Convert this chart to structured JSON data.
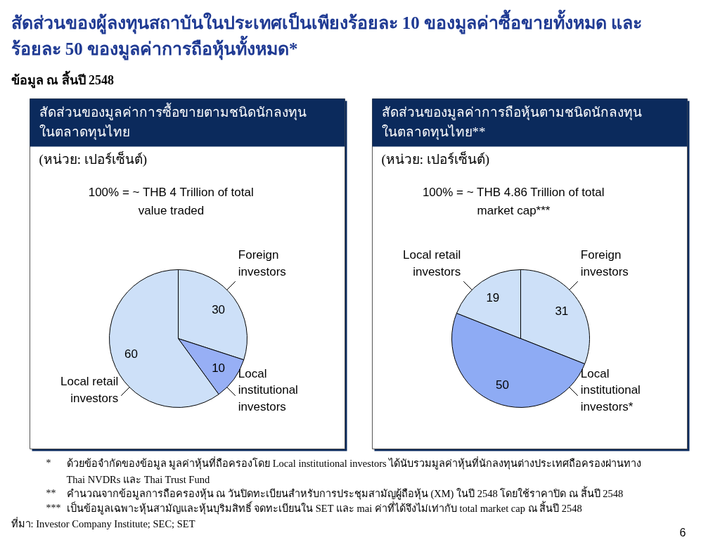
{
  "chart_data": [
    {
      "type": "other",
      "title": "สัดส่วนของผู้ลงทุนสถาบันในประเทศเป็นเพียงร้อยละ 10 ของมูลค่าซื้อขายทั้งหมด และ\nร้อยละ 50 ของมูลค่าการถือหุ้นทั้งหมด*",
      "subtitle": "ข้อมูล ณ สิ้นปี 2548",
      "annotations": [
        "* ด้วยข้อจำกัดของข้อมูล มูลค่าหุ้นที่ถือครองโดย Local institutional investors ได้นับรวมมูลค่าหุ้นที่นักลงทุนต่างประเทศถือครองผ่านทาง\nThai NVDRs และ Thai Trust Fund",
        "** คำนวณจากข้อมูลการถือครองหุ้น ณ วันปิดทะเบียนสำหรับการประชุมสามัญผู้ถือหุ้น (XM) ในปี 2548 โดยใช้ราคาปิด ณ สิ้นปี 2548",
        "*** เป็นข้อมูลเฉพาะหุ้นสามัญและหุ้นบุริมสิทธิ์ จดทะเบียนใน SET และ mai ค่าที่ได้จึงไม่เท่ากับ total market cap ณ สิ้นปี 2548",
        "ที่มา: Investor Company Institute; SEC; SET",
        "6"
      ]
    },
    {
      "type": "pie",
      "title": "สัดส่วนของมูลค่าการซื้อขายตามชนิดนักลงทุน\nในตลาดทุนไทย",
      "subtitle": "(หน่วย: เปอร์เซ็นต์)",
      "annotations": [
        "100% = ~ THB 4 Trillion of total\nvalue traded"
      ],
      "categories": [
        "Foreign\ninvestors",
        "Local\ninstitutional\ninvestors",
        "Local retail\ninvestors"
      ],
      "values": [
        30,
        10,
        60
      ],
      "colors": [
        "#cde0f8",
        "#97aff5",
        "#cde0f8"
      ],
      "data_labels": true
    },
    {
      "type": "pie",
      "title": "สัดส่วนของมูลค่าการถือหุ้นตามชนิดนักลงทุน\nในตลาดทุนไทย**",
      "subtitle": "(หน่วย: เปอร์เซ็นต์)",
      "annotations": [
        "100% = ~ THB 4.86 Trillion of total\nmarket cap***"
      ],
      "categories": [
        "Foreign\ninvestors",
        "Local\ninstitutional\ninvestors*",
        "Local retail\ninvestors"
      ],
      "values": [
        31,
        50,
        19
      ],
      "colors": [
        "#cde0f8",
        "#8eabf4",
        "#cde0f8"
      ],
      "data_labels": true
    }
  ]
}
